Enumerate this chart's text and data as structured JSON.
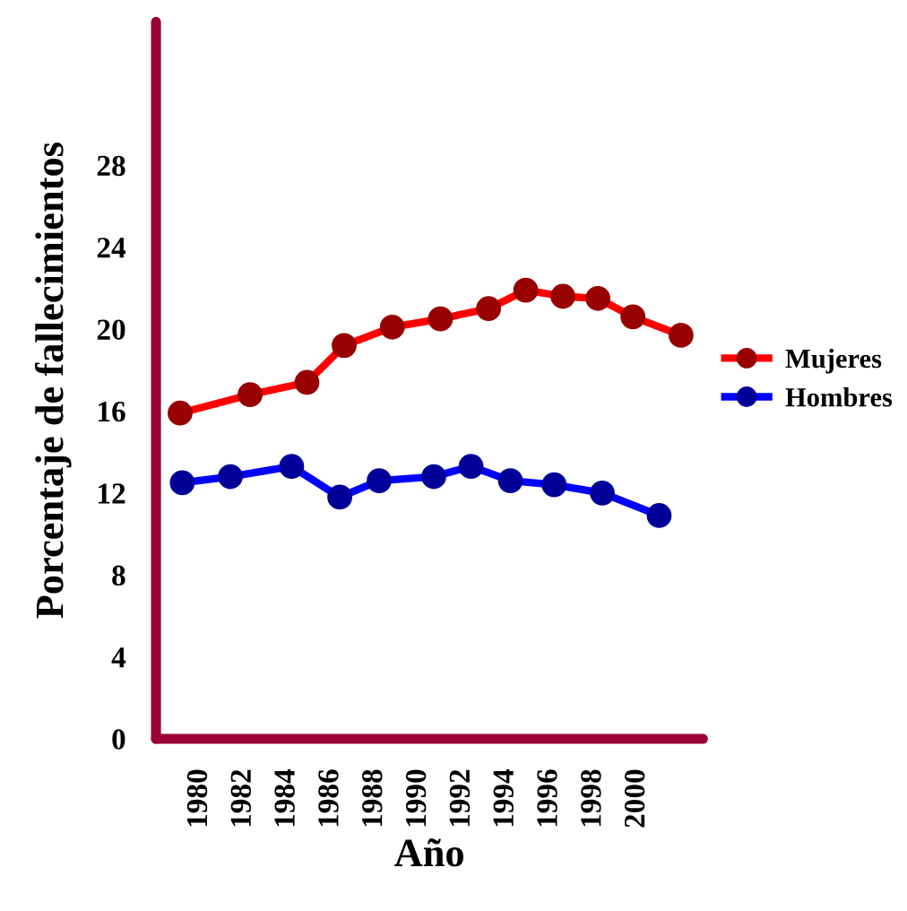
{
  "chart_data": {
    "type": "line",
    "xlabel": "Año",
    "ylabel": "Porcentaje de fallecimientos",
    "xlim": [
      1978,
      2003
    ],
    "xticks": [
      1980,
      1982,
      1984,
      1986,
      1988,
      1990,
      1992,
      1994,
      1996,
      1998,
      2000
    ],
    "ylim": [
      0,
      35
    ],
    "yticks": [
      0,
      4,
      8,
      12,
      16,
      20,
      24,
      28
    ],
    "marker": "circle",
    "line_style": "solid",
    "grid": false,
    "legend": "right",
    "series": [
      {
        "name": "Mujeres",
        "color": "#ff0000",
        "x": [
          1979.1,
          1982.3,
          1984.9,
          1986.6,
          1988.8,
          1991.0,
          1993.2,
          1994.9,
          1996.6,
          1998.2,
          1999.8,
          2002.0
        ],
        "values": [
          15.9,
          16.8,
          17.4,
          19.2,
          20.1,
          20.5,
          21.0,
          21.9,
          21.6,
          21.5,
          20.6,
          19.7
        ]
      },
      {
        "name": "Hombres",
        "color": "#0000ff",
        "x": [
          1979.2,
          1981.4,
          1984.2,
          1986.4,
          1988.2,
          1990.7,
          1992.4,
          1994.2,
          1996.2,
          1998.4,
          2001.0
        ],
        "values": [
          12.5,
          12.8,
          13.3,
          11.8,
          12.6,
          12.8,
          13.3,
          12.6,
          12.4,
          12.0,
          10.9
        ]
      }
    ]
  }
}
